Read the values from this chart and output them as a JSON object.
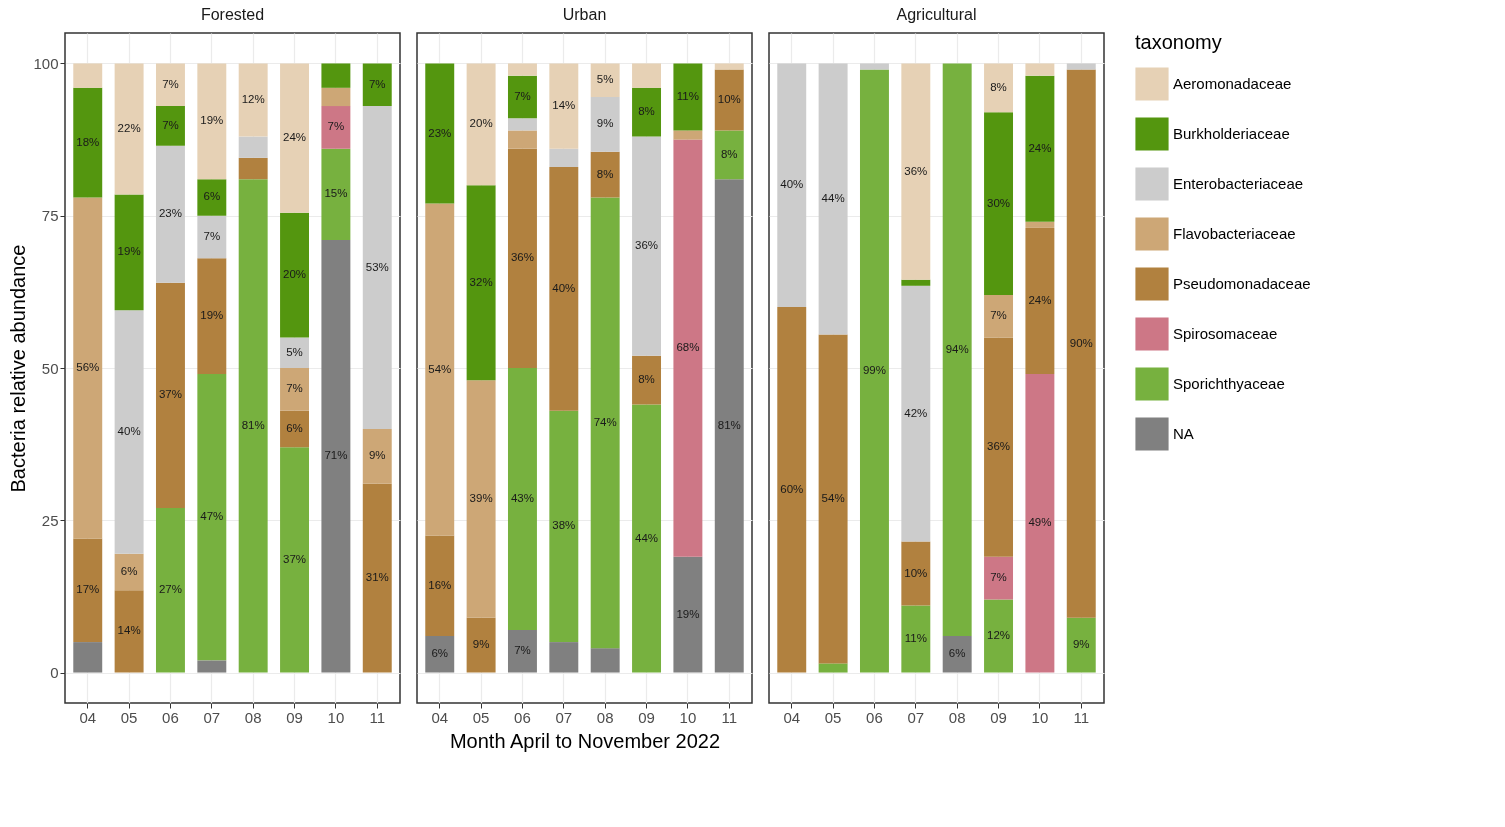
{
  "chart_data": [
    {
      "type": "bar",
      "stacked": true,
      "title": "Forested",
      "ylabel": "Bacteria relative abundance",
      "legend_title": "taxonomy",
      "legend": "right",
      "categories": [
        "04",
        "05",
        "06",
        "07",
        "08",
        "09",
        "10",
        "11"
      ],
      "ylim": [
        -5,
        105
      ],
      "yticks": [
        0,
        25,
        50,
        75,
        100
      ],
      "grid": true,
      "series": [
        {
          "name": "NA",
          "color": "#808080",
          "values": [
            5,
            null,
            null,
            2,
            null,
            null,
            71,
            null
          ],
          "value_labels": [
            null,
            null,
            null,
            null,
            null,
            null,
            "71%",
            null
          ]
        },
        {
          "name": "Sporichthyaceae",
          "color": "#77b13f",
          "values": [
            null,
            null,
            27,
            47,
            81,
            37,
            15,
            null
          ],
          "value_labels": [
            null,
            null,
            "27%",
            "47%",
            "81%",
            "37%",
            "15%",
            null
          ]
        },
        {
          "name": "Spirosomaceae",
          "color": "#cd7786",
          "values": [
            null,
            null,
            null,
            null,
            null,
            null,
            7,
            null
          ],
          "value_labels": [
            null,
            null,
            null,
            null,
            null,
            null,
            "7%",
            null
          ]
        },
        {
          "name": "Pseudomonadaceae",
          "color": "#b1813f",
          "values": [
            17,
            13.5,
            37,
            19,
            3.5,
            6,
            null,
            31
          ],
          "value_labels": [
            "17%",
            "14%",
            "37%",
            "19%",
            null,
            "6%",
            null,
            "31%"
          ]
        },
        {
          "name": "Flavobacteriaceae",
          "color": "#cda776",
          "values": [
            56,
            6,
            null,
            null,
            null,
            7,
            3,
            9
          ],
          "value_labels": [
            "56%",
            "6%",
            null,
            null,
            null,
            "7%",
            null,
            "9%"
          ]
        },
        {
          "name": "Enterobacteriaceae",
          "color": "#cccccc",
          "values": [
            null,
            40,
            22.5,
            7,
            3.5,
            5,
            null,
            53
          ],
          "value_labels": [
            null,
            "40%",
            "23%",
            "7%",
            null,
            "5%",
            null,
            "53%"
          ]
        },
        {
          "name": "Burkholderiaceae",
          "color": "#54960f",
          "values": [
            18,
            19,
            6.5,
            6,
            null,
            20.5,
            4,
            7
          ],
          "value_labels": [
            "18%",
            "19%",
            "7%",
            "6%",
            null,
            "20%",
            null,
            "7%"
          ]
        },
        {
          "name": "Aeromonadaceae",
          "color": "#e6d1b5",
          "values": [
            4,
            21.5,
            7,
            19,
            12,
            24.5,
            null,
            null
          ],
          "value_labels": [
            null,
            "22%",
            "7%",
            "19%",
            "12%",
            "24%",
            null,
            null
          ]
        }
      ]
    },
    {
      "type": "bar",
      "stacked": true,
      "title": "Urban",
      "xlabel": "Month April to November 2022",
      "categories": [
        "04",
        "05",
        "06",
        "07",
        "08",
        "09",
        "10",
        "11"
      ],
      "ylim": [
        -5,
        105
      ],
      "yticks": [
        0,
        25,
        50,
        75,
        100
      ],
      "grid": true,
      "tick_labels": "x",
      "series": [
        {
          "color": "#808080",
          "values": [
            6,
            null,
            7,
            5,
            4,
            null,
            19,
            81
          ],
          "value_labels": [
            "6%",
            null,
            "7%",
            null,
            null,
            null,
            "19%",
            "81%"
          ]
        },
        {
          "color": "#77b13f",
          "values": [
            null,
            null,
            43,
            38,
            74,
            44,
            null,
            8
          ],
          "value_labels": [
            null,
            null,
            "43%",
            "38%",
            "74%",
            "44%",
            null,
            "8%"
          ]
        },
        {
          "color": "#cd7786",
          "values": [
            null,
            null,
            null,
            null,
            null,
            null,
            68.5,
            null
          ],
          "value_labels": [
            null,
            null,
            null,
            null,
            null,
            null,
            "68%",
            null
          ]
        },
        {
          "color": "#b1813f",
          "values": [
            16.5,
            9,
            36,
            40,
            7.5,
            8,
            null,
            10
          ],
          "value_labels": [
            "16%",
            "9%",
            "36%",
            "40%",
            "8%",
            "8%",
            null,
            "10%"
          ]
        },
        {
          "color": "#cda776",
          "values": [
            54.5,
            39,
            3,
            null,
            null,
            null,
            1.5,
            null
          ],
          "value_labels": [
            "54%",
            "39%",
            null,
            null,
            null,
            null,
            null,
            null
          ]
        },
        {
          "color": "#cccccc",
          "values": [
            null,
            null,
            2,
            3,
            9,
            36,
            null,
            null
          ],
          "value_labels": [
            null,
            null,
            null,
            null,
            "9%",
            "36%",
            null,
            null
          ]
        },
        {
          "color": "#54960f",
          "values": [
            23,
            32,
            7,
            null,
            null,
            8,
            11,
            null
          ],
          "value_labels": [
            "23%",
            "32%",
            "7%",
            null,
            null,
            "8%",
            "11%",
            null
          ]
        },
        {
          "color": "#e6d1b5",
          "values": [
            null,
            20,
            2,
            14,
            5.5,
            4,
            null,
            1
          ],
          "value_labels": [
            null,
            "20%",
            null,
            "14%",
            "5%",
            null,
            null,
            null
          ]
        }
      ]
    },
    {
      "type": "bar",
      "stacked": true,
      "title": "Agricultural",
      "categories": [
        "04",
        "05",
        "06",
        "07",
        "08",
        "09",
        "10",
        "11"
      ],
      "ylim": [
        -5,
        105
      ],
      "yticks": [
        0,
        25,
        50,
        75,
        100
      ],
      "grid": true,
      "tick_labels": "x",
      "series": [
        {
          "color": "#808080",
          "values": [
            null,
            null,
            null,
            null,
            6,
            null,
            null,
            null
          ],
          "value_labels": [
            null,
            null,
            null,
            null,
            "6%",
            null,
            null,
            null
          ]
        },
        {
          "color": "#77b13f",
          "values": [
            null,
            1.5,
            99,
            11,
            94,
            12,
            null,
            9
          ],
          "value_labels": [
            null,
            null,
            "99%",
            "11%",
            "94%",
            "12%",
            null,
            "9%"
          ]
        },
        {
          "color": "#cd7786",
          "values": [
            null,
            null,
            null,
            null,
            null,
            7,
            49,
            null
          ],
          "value_labels": [
            null,
            null,
            null,
            null,
            null,
            "7%",
            "49%",
            null
          ]
        },
        {
          "color": "#b1813f",
          "values": [
            60,
            54,
            null,
            10.5,
            null,
            36,
            24,
            90
          ],
          "value_labels": [
            "60%",
            "54%",
            null,
            "10%",
            null,
            "36%",
            "24%",
            "90%"
          ]
        },
        {
          "color": "#cda776",
          "values": [
            null,
            null,
            null,
            null,
            null,
            7,
            1,
            null
          ],
          "value_labels": [
            null,
            null,
            null,
            null,
            null,
            "7%",
            null,
            null
          ]
        },
        {
          "color": "#cccccc",
          "values": [
            40,
            44.5,
            1,
            42,
            null,
            null,
            null,
            1
          ],
          "value_labels": [
            "40%",
            "44%",
            null,
            "42%",
            null,
            null,
            null,
            null
          ]
        },
        {
          "color": "#54960f",
          "values": [
            null,
            null,
            null,
            1,
            null,
            30,
            24,
            null
          ],
          "value_labels": [
            null,
            null,
            null,
            null,
            null,
            "30%",
            "24%",
            null
          ]
        },
        {
          "color": "#e6d1b5",
          "values": [
            null,
            null,
            null,
            35.5,
            null,
            8,
            2,
            null
          ],
          "value_labels": [
            null,
            null,
            null,
            "36%",
            null,
            "8%",
            null,
            null
          ]
        }
      ]
    }
  ]
}
